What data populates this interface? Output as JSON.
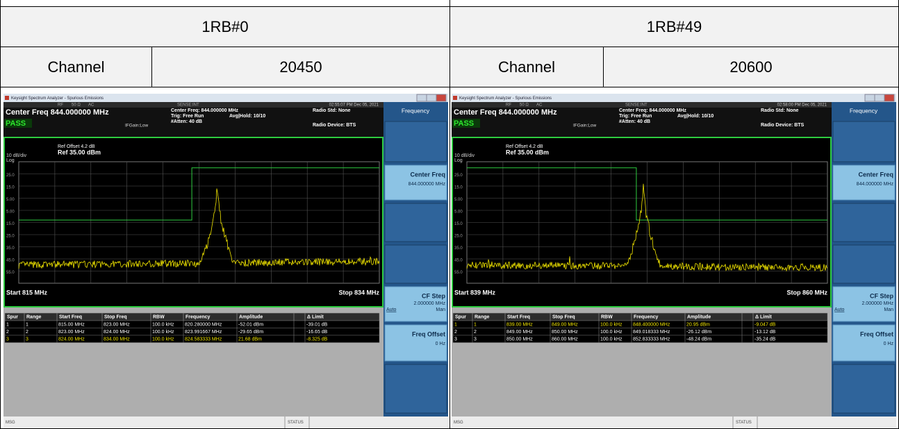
{
  "table": {
    "rows": [
      [
        "1RB#0",
        "1RB#49"
      ],
      [
        "Channel",
        "20450",
        "Channel",
        "20600"
      ]
    ]
  },
  "screens": [
    {
      "window_title": "Keysight Spectrum Analyzer - Spurious Emissions",
      "rf": "RF",
      "ohm": "50 Ω",
      "ac": "AC",
      "sense": "SENSE:INT",
      "time": "02:55:07 PM Dec 05, 2021",
      "center": "Center Freq 844.000000 MHz",
      "pass": "PASS",
      "info": "Center Freq: 844.000000 MHz",
      "trig": "Trig: Free Run",
      "avg": "Avg|Hold: 10/10",
      "atten": "#Atten: 40 dB",
      "ifgain": "IFGain:Low",
      "radio_std": "Radio Std: None",
      "radio_dev": "Radio Device: BTS",
      "ref_offset": "Ref Offset 4.2 dB",
      "ref": "Ref 35.00 dBm",
      "scale": "10 dB/div",
      "log": "Log",
      "yaxis": [
        "25.0",
        "15.0",
        "5.00",
        "5.00",
        "15.0",
        "25.0",
        "35.0",
        "45.0",
        "55.0"
      ],
      "start": "Start 815 MHz",
      "stop": "Stop 834 MHz",
      "header": [
        "Spur",
        "Range",
        "Start Freq",
        "Stop Freq",
        "RBW",
        "Frequency",
        "Amplitude",
        "Δ Limit"
      ],
      "rows": [
        [
          "1",
          "1",
          "815.00 MHz",
          "823.00 MHz",
          "100.0 kHz",
          "820.280000 MHz",
          "-52.01 dBm",
          "-39.01 dB"
        ],
        [
          "2",
          "2",
          "823.00 MHz",
          "824.00 MHz",
          "100.0 kHz",
          "823.991667 MHz",
          "-29.65 dBm",
          "-16.65 dB"
        ],
        [
          "3",
          "3",
          "824.00 MHz",
          "834.00 MHz",
          "100.0 kHz",
          "824.583333 MHz",
          "21.68 dBm",
          "-8.325 dB"
        ]
      ],
      "highlight_row": 2,
      "menu": {
        "title": "Frequency",
        "center_label": "Center Freq",
        "center_value": "844.000000 MHz",
        "step_label": "CF Step",
        "step_value": "2.000000 MHz",
        "auto": "Auto",
        "man": "Man",
        "offset_label": "Freq Offset",
        "offset_value": "0 Hz"
      },
      "msg": "MSG",
      "status": "STATUS"
    },
    {
      "window_title": "Keysight Spectrum Analyzer - Spurious Emissions",
      "rf": "RF",
      "ohm": "50 Ω",
      "ac": "AC",
      "sense": "SENSE:INT",
      "time": "02:58:00 PM Dec 05, 2021",
      "center": "Center Freq 844.000000 MHz",
      "pass": "PASS",
      "info": "Center Freq: 844.000000 MHz",
      "trig": "Trig: Free Run",
      "avg": "Avg|Hold: 10/10",
      "atten": "#Atten: 40 dB",
      "ifgain": "IFGain:Low",
      "radio_std": "Radio Std: None",
      "radio_dev": "Radio Device: BTS",
      "ref_offset": "Ref Offset 4.2 dB",
      "ref": "Ref 35.00 dBm",
      "scale": "10 dB/div",
      "log": "Log",
      "yaxis": [
        "25.0",
        "15.0",
        "5.00",
        "5.00",
        "15.0",
        "25.0",
        "35.0",
        "45.0",
        "55.0"
      ],
      "start": "Start 839 MHz",
      "stop": "Stop 860 MHz",
      "header": [
        "Spur",
        "Range",
        "Start Freq",
        "Stop Freq",
        "RBW",
        "Frequency",
        "Amplitude",
        "Δ Limit"
      ],
      "rows": [
        [
          "1",
          "1",
          "839.00 MHz",
          "849.00 MHz",
          "100.0 kHz",
          "848.400000 MHz",
          "20.95 dBm",
          "-9.047 dB"
        ],
        [
          "2",
          "2",
          "849.00 MHz",
          "850.00 MHz",
          "100.0 kHz",
          "849.018333 MHz",
          "-26.12 dBm",
          "-13.12 dB"
        ],
        [
          "3",
          "3",
          "850.00 MHz",
          "860.00 MHz",
          "100.0 kHz",
          "852.833333 MHz",
          "-48.24 dBm",
          "-35.24 dB"
        ]
      ],
      "highlight_row": 0,
      "menu": {
        "title": "Frequency",
        "center_label": "Center Freq",
        "center_value": "844.000000 MHz",
        "step_label": "CF Step",
        "step_value": "2.000000 MHz",
        "auto": "Auto",
        "man": "Man",
        "offset_label": "Freq Offset",
        "offset_value": "0 Hz"
      },
      "msg": "MSG",
      "status": "STATUS"
    }
  ]
}
